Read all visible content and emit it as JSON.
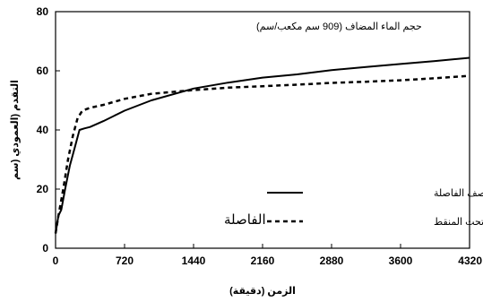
{
  "chart_data": {
    "type": "line",
    "title": "",
    "annotation": "حجم الماء المضاف (909 سم مكعب/سم)",
    "region_label": "الفاصلة",
    "xlabel": "الزمن (دقيقة)",
    "ylabel": "التقدم (العمودي (سم",
    "xlim": [
      0,
      4320
    ],
    "ylim": [
      0,
      80
    ],
    "xticks": [
      "0",
      "720",
      "1440",
      "2160",
      "2880",
      "3600",
      "4320"
    ],
    "yticks": [
      "0",
      "20",
      "40",
      "60",
      "80"
    ],
    "grid": false,
    "legend_position": "right",
    "series": [
      {
        "name": "التقدم العمودي عند منتصف الفاصلة",
        "style": "solid",
        "color": "#000000",
        "x": [
          0,
          30,
          60,
          100,
          150,
          200,
          250,
          300,
          360,
          500,
          720,
          1000,
          1440,
          1800,
          2160,
          2520,
          2880,
          3240,
          3600,
          3960,
          4320
        ],
        "y": [
          5,
          11,
          13,
          20,
          28,
          34,
          40,
          40.5,
          41,
          43,
          46.5,
          50,
          54,
          56,
          57.7,
          58.8,
          60.2,
          61.3,
          62.3,
          63.3,
          64.4
        ]
      },
      {
        "name": "التقدم العمودي تحت المنقط",
        "style": "dashed",
        "color": "#000000",
        "x": [
          0,
          30,
          80,
          130,
          180,
          230,
          280,
          360,
          500,
          720,
          1000,
          1440,
          1800,
          2160,
          2520,
          2880,
          3240,
          3600,
          3960,
          4320
        ],
        "y": [
          5,
          11,
          20,
          30,
          38,
          44,
          46.5,
          47.5,
          48.5,
          50.5,
          52.2,
          53.5,
          54.3,
          54.8,
          55.3,
          55.9,
          56.3,
          56.8,
          57.5,
          58.3
        ]
      }
    ]
  }
}
